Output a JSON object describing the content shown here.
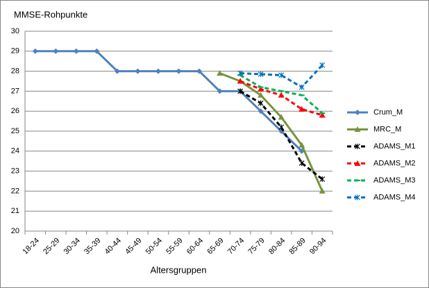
{
  "chart_data": {
    "type": "line",
    "y_title": "MMSE-Rohpunkte",
    "x_title": "Altersgruppen",
    "categories": [
      "18-24",
      "25-29",
      "30-34",
      "35-39",
      "40-44",
      "45-49",
      "50-54",
      "55-59",
      "60-64",
      "65-69",
      "70-74",
      "75-79",
      "80-84",
      "85-89",
      "90-94"
    ],
    "series": [
      {
        "name": "Crum_M",
        "color": "#4f81bd",
        "dash": false,
        "marker": "diamond",
        "values": [
          29,
          29,
          29,
          29,
          28,
          28,
          28,
          28,
          28,
          27,
          27,
          26,
          25,
          24,
          null
        ]
      },
      {
        "name": "MRC_M",
        "color": "#77933c",
        "dash": false,
        "marker": "triangle",
        "values": [
          null,
          null,
          null,
          null,
          null,
          null,
          null,
          null,
          null,
          27.9,
          27.5,
          26.8,
          25.7,
          24.3,
          22.0
        ]
      },
      {
        "name": "ADAMS_M1",
        "color": "#000000",
        "dash": true,
        "marker": "x",
        "values": [
          null,
          null,
          null,
          null,
          null,
          null,
          null,
          null,
          null,
          null,
          27.0,
          26.4,
          25.2,
          23.4,
          22.6
        ]
      },
      {
        "name": "ADAMS_M2",
        "color": "#ff0000",
        "dash": true,
        "marker": "triangle",
        "values": [
          null,
          null,
          null,
          null,
          null,
          null,
          null,
          null,
          null,
          null,
          27.5,
          27.1,
          26.8,
          26.1,
          25.8
        ]
      },
      {
        "name": "ADAMS_M3",
        "color": "#00b050",
        "dash": true,
        "marker": "dash",
        "values": [
          null,
          null,
          null,
          null,
          null,
          null,
          null,
          null,
          null,
          null,
          27.8,
          27.2,
          27.0,
          26.8,
          25.9
        ]
      },
      {
        "name": "ADAMS_M4",
        "color": "#0070c0",
        "dash": true,
        "marker": "x",
        "values": [
          null,
          null,
          null,
          null,
          null,
          null,
          null,
          null,
          null,
          null,
          27.9,
          27.85,
          27.8,
          27.2,
          28.3
        ]
      }
    ],
    "ylim": [
      20,
      30
    ],
    "yticks": [
      20,
      21,
      22,
      23,
      24,
      25,
      26,
      27,
      28,
      29,
      30
    ],
    "grid": true,
    "legend": "right"
  }
}
